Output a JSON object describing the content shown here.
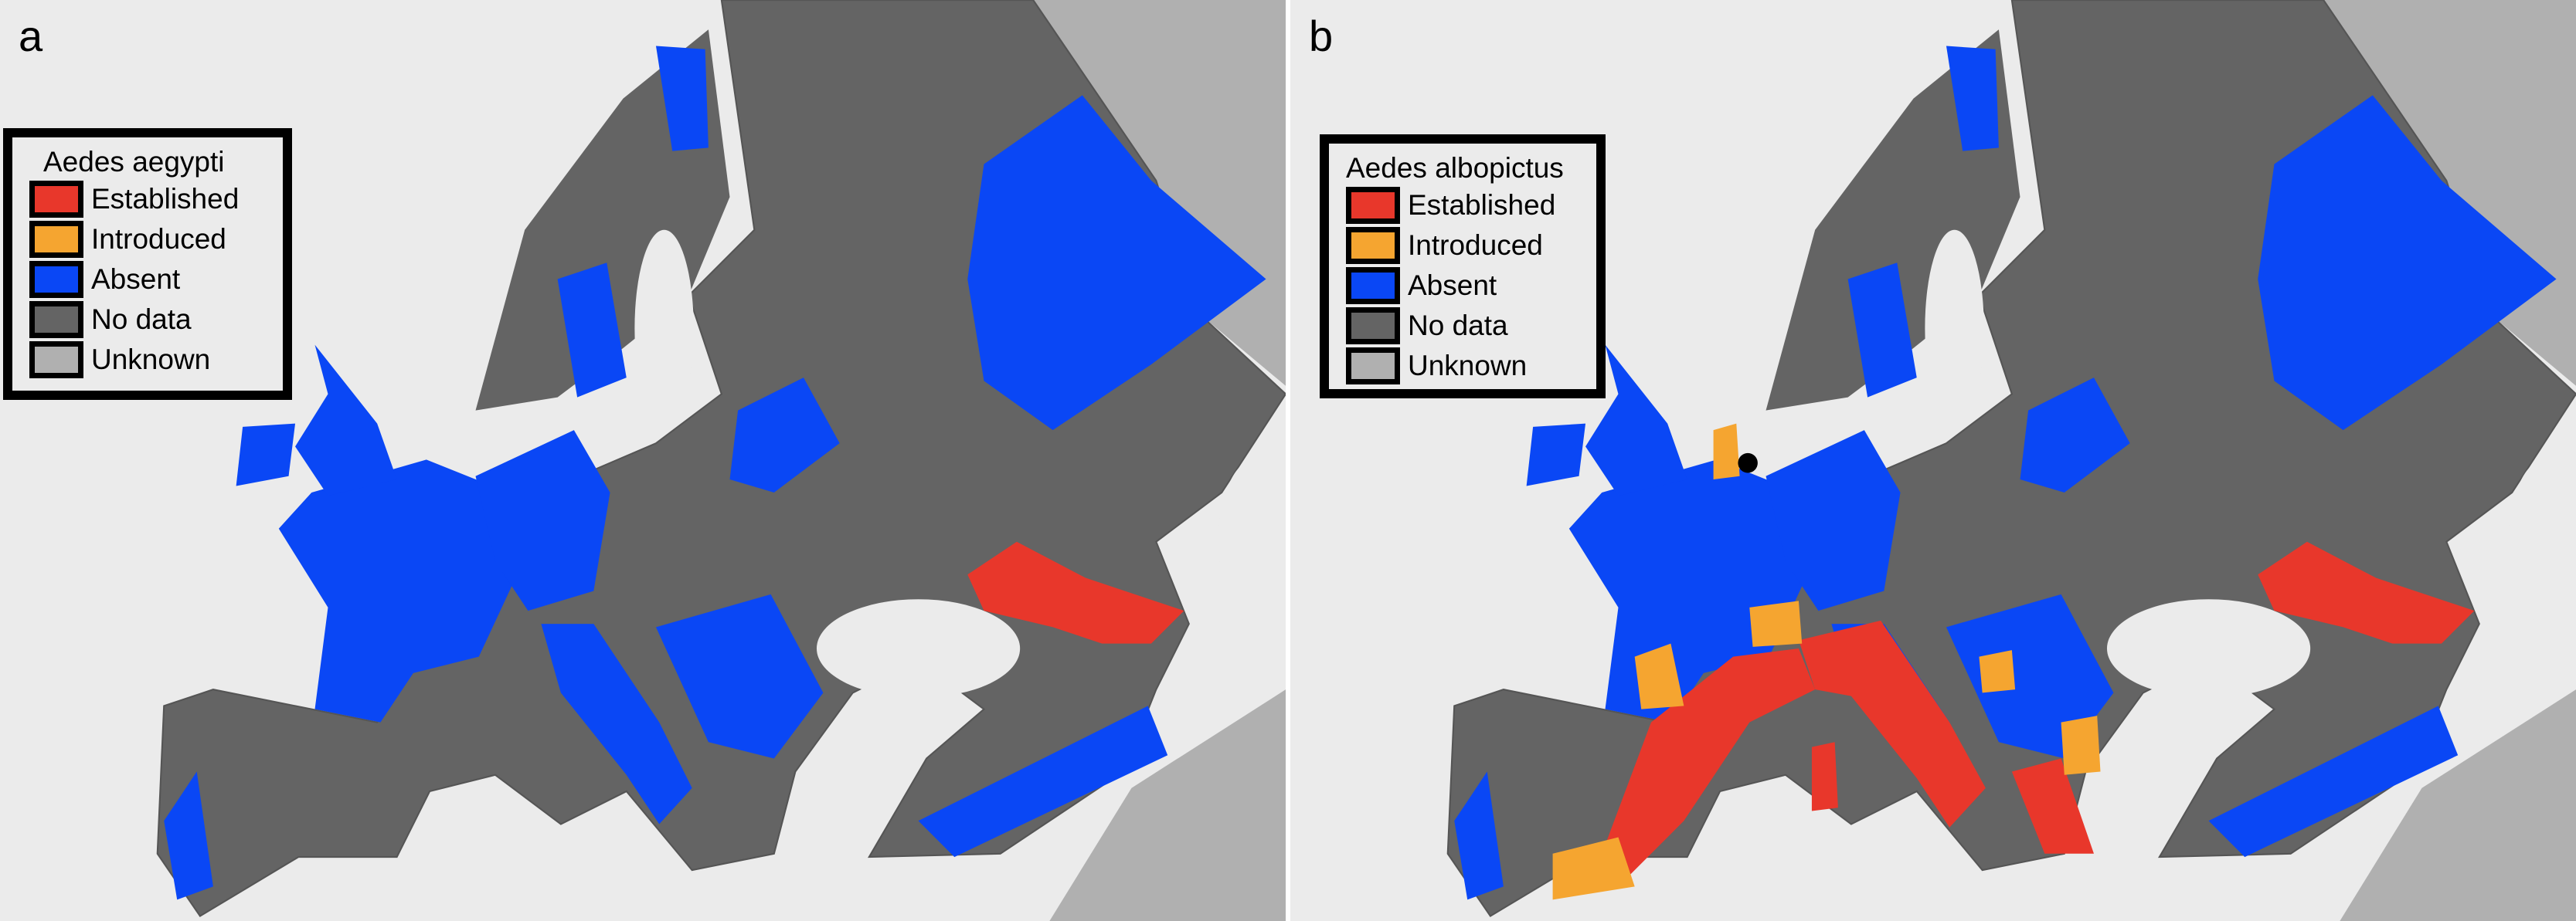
{
  "colors": {
    "established": "#e8372b",
    "introduced": "#f5a530",
    "absent": "#0a47f5",
    "no_data": "#646464",
    "unknown": "#b0b0b0",
    "water": "#ebebeb"
  },
  "panels": [
    {
      "label": "a",
      "legend": {
        "title": "Aedes aegypti",
        "items": [
          {
            "label": "Established",
            "color": "#e8372b"
          },
          {
            "label": "Introduced",
            "color": "#f5a530"
          },
          {
            "label": "Absent",
            "color": "#0a47f5"
          },
          {
            "label": "No data",
            "color": "#646464"
          },
          {
            "label": "Unknown",
            "color": "#b0b0b0"
          }
        ]
      }
    },
    {
      "label": "b",
      "legend": {
        "title": "Aedes albopictus",
        "items": [
          {
            "label": "Established",
            "color": "#e8372b"
          },
          {
            "label": "Introduced",
            "color": "#f5a530"
          },
          {
            "label": "Absent",
            "color": "#0a47f5"
          },
          {
            "label": "No data",
            "color": "#646464"
          },
          {
            "label": "Unknown",
            "color": "#b0b0b0"
          }
        ]
      }
    }
  ]
}
